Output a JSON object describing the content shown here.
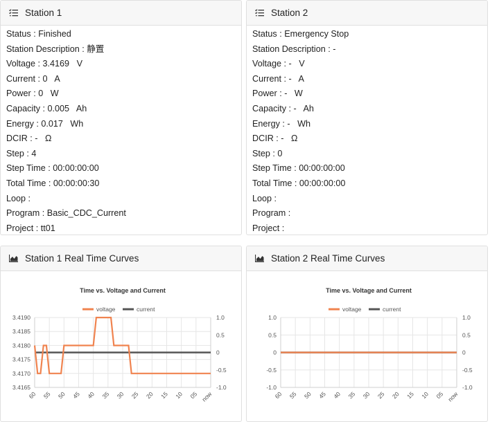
{
  "station1": {
    "title": "Station 1",
    "rows": [
      {
        "label": "Status",
        "value": "Finished",
        "unit": ""
      },
      {
        "label": "Station Description",
        "value": "静置",
        "unit": ""
      },
      {
        "label": "Voltage",
        "value": "3.4169",
        "unit": "V"
      },
      {
        "label": "Current",
        "value": "0",
        "unit": "A"
      },
      {
        "label": "Power",
        "value": "0",
        "unit": "W"
      },
      {
        "label": "Capacity",
        "value": "0.005",
        "unit": "Ah"
      },
      {
        "label": "Energy",
        "value": "0.017",
        "unit": "Wh"
      },
      {
        "label": "DCIR",
        "value": "-",
        "unit": "Ω"
      },
      {
        "label": "Step",
        "value": "4",
        "unit": ""
      },
      {
        "label": "Step Time",
        "value": "00:00:00:00",
        "unit": ""
      },
      {
        "label": "Total Time",
        "value": "00:00:00:30",
        "unit": ""
      },
      {
        "label": "Loop",
        "value": "",
        "unit": ""
      },
      {
        "label": "Program",
        "value": "Basic_CDC_Current",
        "unit": ""
      },
      {
        "label": "Project",
        "value": "tt01",
        "unit": ""
      }
    ]
  },
  "station2": {
    "title": "Station 2",
    "rows": [
      {
        "label": "Status",
        "value": "Emergency Stop",
        "unit": ""
      },
      {
        "label": "Station Description",
        "value": "-",
        "unit": ""
      },
      {
        "label": "Voltage",
        "value": "-",
        "unit": "V"
      },
      {
        "label": "Current",
        "value": "-",
        "unit": "A"
      },
      {
        "label": "Power",
        "value": "-",
        "unit": "W"
      },
      {
        "label": "Capacity",
        "value": "-",
        "unit": "Ah"
      },
      {
        "label": "Energy",
        "value": "-",
        "unit": "Wh"
      },
      {
        "label": "DCIR",
        "value": "-",
        "unit": "Ω"
      },
      {
        "label": "Step",
        "value": "0",
        "unit": ""
      },
      {
        "label": "Step Time",
        "value": "00:00:00:00",
        "unit": ""
      },
      {
        "label": "Total Time",
        "value": "00:00:00:00",
        "unit": ""
      },
      {
        "label": "Loop",
        "value": "",
        "unit": ""
      },
      {
        "label": "Program",
        "value": "",
        "unit": ""
      },
      {
        "label": "Project",
        "value": "",
        "unit": ""
      }
    ]
  },
  "curves1": {
    "title": "Station 1 Real Time Curves"
  },
  "curves2": {
    "title": "Station 2 Real Time Curves"
  },
  "colors": {
    "voltage": "#f0834f",
    "current": "#555555"
  },
  "chart_data": [
    {
      "type": "line",
      "title": "Time vs. Voltage and Current",
      "x_ticks": [
        "60",
        "55",
        "50",
        "45",
        "40",
        "35",
        "30",
        "25",
        "20",
        "15",
        "10",
        "05",
        "now"
      ],
      "x": [
        60,
        59,
        58,
        57,
        56,
        55,
        54,
        53,
        52,
        51,
        50,
        49,
        48,
        47,
        46,
        45,
        44,
        43,
        42,
        41,
        40,
        39,
        38,
        37,
        36,
        35,
        34,
        33,
        32,
        31,
        30,
        29,
        28,
        27,
        26,
        25,
        24,
        23,
        22,
        21,
        20,
        19,
        18,
        17,
        16,
        15,
        14,
        13,
        12,
        11,
        10,
        9,
        8,
        7,
        6,
        5,
        4,
        3,
        2,
        1,
        0
      ],
      "y_left_ticks": [
        "3.4190",
        "3.4185",
        "3.4180",
        "3.4175",
        "3.4170",
        "3.4165"
      ],
      "y_right_ticks": [
        "1.0",
        "0.5",
        "0",
        "-0.5",
        "-1.0"
      ],
      "ylim_left": [
        3.4165,
        3.419
      ],
      "ylim_right": [
        -1.0,
        1.0
      ],
      "series": [
        {
          "name": "voltage",
          "axis": "left",
          "values": [
            3.418,
            3.417,
            3.417,
            3.418,
            3.418,
            3.417,
            3.417,
            3.417,
            3.417,
            3.417,
            3.418,
            3.418,
            3.418,
            3.418,
            3.418,
            3.418,
            3.418,
            3.418,
            3.418,
            3.418,
            3.418,
            3.419,
            3.419,
            3.419,
            3.419,
            3.419,
            3.419,
            3.418,
            3.418,
            3.418,
            3.418,
            3.418,
            3.418,
            3.417,
            3.417,
            3.417,
            3.417,
            3.417,
            3.417,
            3.417,
            3.417,
            3.417,
            3.417,
            3.417,
            3.417,
            3.417,
            3.417,
            3.417,
            3.417,
            3.417,
            3.417,
            3.417,
            3.417,
            3.417,
            3.417,
            3.417,
            3.417,
            3.417,
            3.417,
            3.417,
            3.417
          ]
        },
        {
          "name": "current",
          "axis": "right",
          "values": [
            0,
            0,
            0,
            0,
            0,
            0,
            0,
            0,
            0,
            0,
            0,
            0,
            0,
            0,
            0,
            0,
            0,
            0,
            0,
            0,
            0,
            0,
            0,
            0,
            0,
            0,
            0,
            0,
            0,
            0,
            0,
            0,
            0,
            0,
            0,
            0,
            0,
            0,
            0,
            0,
            0,
            0,
            0,
            0,
            0,
            0,
            0,
            0,
            0,
            0,
            0,
            0,
            0,
            0,
            0,
            0,
            0,
            0,
            0,
            0,
            0
          ]
        }
      ]
    },
    {
      "type": "line",
      "title": "Time vs. Voltage and Current",
      "x_ticks": [
        "60",
        "55",
        "50",
        "45",
        "40",
        "35",
        "30",
        "25",
        "20",
        "15",
        "10",
        "05",
        "now"
      ],
      "x": [
        60,
        0
      ],
      "y_left_ticks": [
        "1.0",
        "0.5",
        "0",
        "-0.5",
        "-1.0"
      ],
      "y_right_ticks": [
        "1.0",
        "0.5",
        "0",
        "-0.5",
        "-1.0"
      ],
      "ylim_left": [
        -1.0,
        1.0
      ],
      "ylim_right": [
        -1.0,
        1.0
      ],
      "series": [
        {
          "name": "voltage",
          "axis": "left",
          "values": [
            0,
            0
          ]
        },
        {
          "name": "current",
          "axis": "right",
          "values": [
            0,
            0
          ]
        }
      ]
    }
  ]
}
